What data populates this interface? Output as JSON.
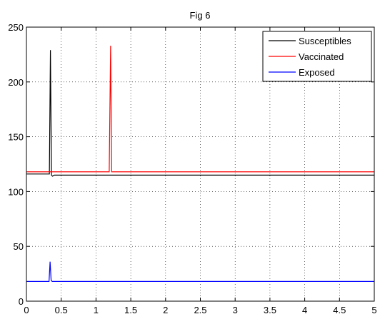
{
  "chart_data": {
    "type": "line",
    "title": "Fig 6",
    "xlabel": "",
    "ylabel": "",
    "xlim": [
      0,
      5
    ],
    "ylim": [
      0,
      250
    ],
    "xticks": [
      0,
      0.5,
      1,
      1.5,
      2,
      2.5,
      3,
      3.5,
      4,
      4.5,
      5
    ],
    "xtick_labels": [
      "0",
      "0.5",
      "1",
      "1.5",
      "2",
      "2.5",
      "3",
      "3.5",
      "4",
      "4.5",
      "5"
    ],
    "yticks": [
      0,
      50,
      100,
      150,
      200,
      250
    ],
    "ytick_labels": [
      "0",
      "50",
      "100",
      "150",
      "200",
      "250"
    ],
    "grid": true,
    "legend_position": "top-right",
    "series": [
      {
        "name": "Susceptibles",
        "color": "#000000",
        "x": [
          0,
          0.33,
          0.345,
          0.36,
          0.375,
          0.4,
          5
        ],
        "y": [
          116,
          116,
          229,
          115,
          114,
          115,
          115
        ]
      },
      {
        "name": "Vaccinated",
        "color": "#ff0000",
        "x": [
          0,
          1.19,
          1.21,
          1.225,
          1.24,
          5
        ],
        "y": [
          118,
          118,
          233,
          118,
          118,
          118
        ]
      },
      {
        "name": "Exposed",
        "color": "#0000ff",
        "x": [
          0,
          0.325,
          0.34,
          0.355,
          0.37,
          5
        ],
        "y": [
          18,
          18,
          36,
          19,
          18,
          18
        ]
      }
    ]
  }
}
